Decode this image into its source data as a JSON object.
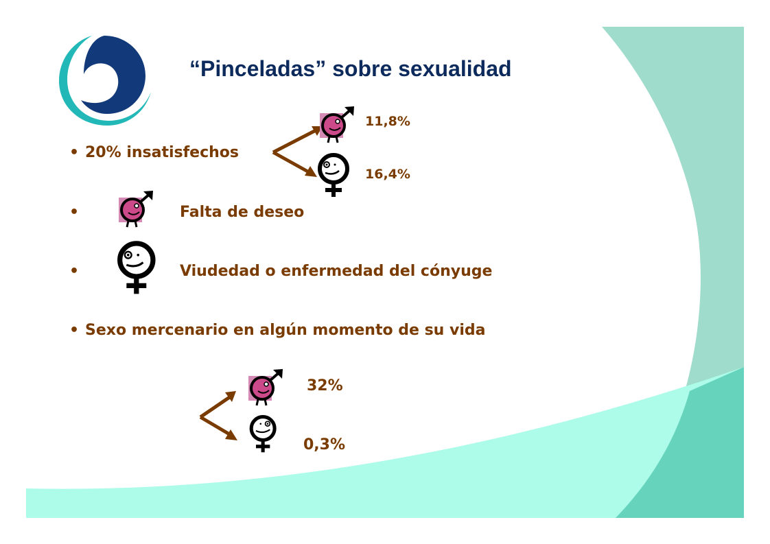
{
  "slide": {
    "title": "“Pinceladas” sobre sexualidad",
    "bullet_char": "•",
    "items": [
      {
        "text": "20% insatisfechos",
        "male_pct": "11,8%",
        "female_pct": "16,4%"
      },
      {
        "text": "Falta de deseo",
        "icon": "male-symbol-face-icon"
      },
      {
        "text": "Viudedad o enfermedad del cónyuge",
        "icon": "female-symbol-face-icon"
      },
      {
        "text": "Sexo mercenario en algún momento de su vida",
        "male_pct": "32%",
        "female_pct": "0,3%"
      }
    ]
  },
  "colors": {
    "title": "#0d2a5c",
    "text": "#7a3b00",
    "arrow": "#7a3b00",
    "teal_light": "#9fdccb",
    "teal_mid": "#66d4bd",
    "mint": "#adfbe9",
    "logo_teal": "#22b8b8",
    "logo_navy": "#123a7a",
    "face_pink": "#cc4a8a",
    "square_pink": "#d48ab4"
  }
}
